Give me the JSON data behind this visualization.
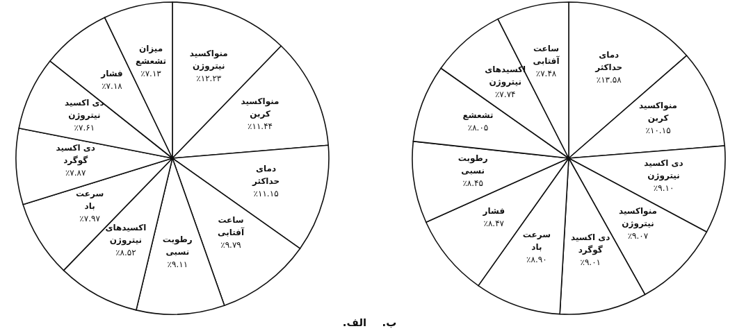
{
  "chart_data": [
    {
      "type": "pie",
      "title": "الف.",
      "categories": [
        "منواکسید نیتروژن",
        "منواکسید کربن",
        "دمای حداکثر",
        "ساعت آفتابی",
        "رطوبت نسبی",
        "اکسیدهای نیتروژن",
        "سرعت باد",
        "دی اکسید گوگرد",
        "دی اکسید نیتروژن",
        "فشار",
        "میزان تشعشع"
      ],
      "values": [
        12.23,
        11.44,
        11.15,
        9.79,
        9.11,
        8.52,
        7.97,
        7.87,
        7.61,
        7.18,
        7.13
      ],
      "value_labels": [
        "٪۱۲.۲۳",
        "٪۱۱.۴۴",
        "٪۱۱.۱۵",
        "٪۹.۷۹",
        "٪۹.۱۱",
        "٪۸.۵۲",
        "٪۷.۹۷",
        "٪۷.۸۷",
        "٪۷.۶۱",
        "٪۷.۱۸",
        "٪۷.۱۳"
      ],
      "colors": [
        "#ffffff",
        "#ffffff",
        "#ffffff",
        "#ffffff",
        "#ffffff",
        "#ffffff",
        "#ffffff",
        "#ffffff",
        "#ffffff",
        "#ffffff",
        "#ffffff"
      ]
    },
    {
      "type": "pie",
      "title": "ب.",
      "categories": [
        "دمای حداکثر",
        "منواکسید کربن",
        "دی اکسید نیتروژن",
        "منواکسید نیتروژن",
        "دی اکسید گوگرد",
        "سرعت باد",
        "فشار",
        "رطوبت نسبی",
        "تشعشع",
        "اکسیدهای نیتروژن",
        "ساعت آفتابی"
      ],
      "values": [
        13.58,
        10.15,
        9.1,
        9.07,
        9.01,
        8.9,
        8.47,
        8.45,
        8.05,
        7.74,
        7.48
      ],
      "value_labels": [
        "٪۱۳.۵۸",
        "٪۱۰.۱۵",
        "٪۹.۱۰",
        "٪۹.۰۷",
        "٪۹.۰۱",
        "٪۸.۹۰",
        "٪۸.۴۷",
        "٪۸.۴۵",
        "٪۸.۰۵",
        "٪۷.۷۴",
        "٪۷.۴۸"
      ],
      "colors": [
        "#ffffff",
        "#ffffff",
        "#ffffff",
        "#ffffff",
        "#ffffff",
        "#ffffff",
        "#ffffff",
        "#ffffff",
        "#ffffff",
        "#ffffff",
        "#ffffff"
      ]
    }
  ]
}
